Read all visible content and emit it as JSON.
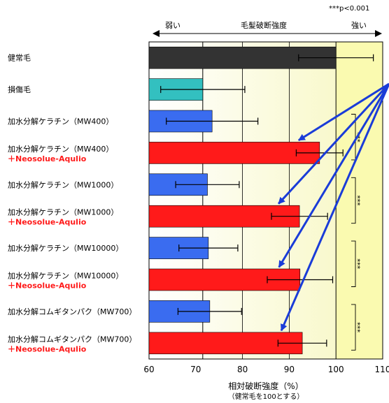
{
  "chart_data": {
    "type": "bar",
    "orientation": "horizontal",
    "categories": [
      {
        "label": "健常毛",
        "sub": ""
      },
      {
        "label": "損傷毛",
        "sub": ""
      },
      {
        "label": "加水分解ケラチン（MW400）",
        "sub": ""
      },
      {
        "label": "加水分解ケラチン（MW400）",
        "sub": "＋Neosolue-Aqulio"
      },
      {
        "label": "加水分解ケラチン（MW1000）",
        "sub": ""
      },
      {
        "label": "加水分解ケラチン（MW1000）",
        "sub": "＋Neosolue-Aqulio"
      },
      {
        "label": "加水分解ケラチン（MW10000）",
        "sub": ""
      },
      {
        "label": "加水分解ケラチン（MW10000）",
        "sub": "＋Neosolue-Aqulio"
      },
      {
        "label": "加水分解コムギタンパク（MW700）",
        "sub": ""
      },
      {
        "label": "加水分解コムギタンパク（MW700）",
        "sub": "＋Neosolue-Aqulio"
      }
    ],
    "values": [
      100,
      71.5,
      73.5,
      96.5,
      72.5,
      92.2,
      72.7,
      92.3,
      73.0,
      92.8
    ],
    "error": [
      8,
      9,
      9.8,
      5,
      6.8,
      6,
      6.3,
      7,
      6.8,
      5.2
    ],
    "bar_colors": [
      "#333333",
      "#33c0c0",
      "#3a6cf0",
      "#ff1a1a",
      "#3a6cf0",
      "#ff1a1a",
      "#3a6cf0",
      "#ff1a1a",
      "#3a6cf0",
      "#ff1a1a"
    ],
    "xlim": [
      60,
      110
    ],
    "xticks": [
      "60",
      "70",
      "80",
      "90",
      "100",
      "110"
    ],
    "xlabel": "相対破断強度（%）",
    "xlabel_note": "（健常毛を100とする）",
    "strength_axis": {
      "title": "毛髪破断強度",
      "left": "弱い",
      "right": "強い"
    },
    "significance_note": "***p<0.001",
    "significance": [
      {
        "pair": [
          2,
          3
        ],
        "label": "***"
      },
      {
        "pair": [
          4,
          5
        ],
        "label": "***"
      },
      {
        "pair": [
          6,
          7
        ],
        "label": "***"
      },
      {
        "pair": [
          8,
          9
        ],
        "label": "***"
      }
    ],
    "reference_lines": [
      71.5,
      100
    ],
    "grid": true,
    "background_gradient": [
      "#ffffff",
      "#fafac8"
    ],
    "highlight_region": {
      "from": 100,
      "to": 110,
      "color": "#fafab0"
    },
    "arrow_color": "#1a3cd8",
    "arrow_targets": [
      3,
      5,
      7,
      9
    ]
  }
}
